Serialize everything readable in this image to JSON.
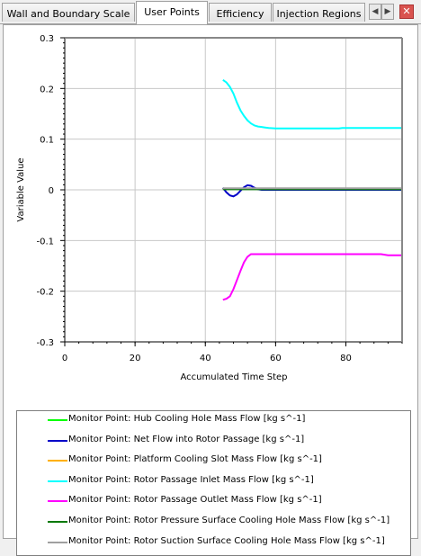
{
  "tabs": [
    {
      "label": "Wall and Boundary Scale",
      "active": false
    },
    {
      "label": "User Points",
      "active": true
    },
    {
      "label": "Efficiency",
      "active": false
    },
    {
      "label": "Injection Regions",
      "active": false
    }
  ],
  "nav": {
    "prev_icon": "triangle-left",
    "next_icon": "triangle-right",
    "close_icon": "close-x"
  },
  "chart_data": {
    "type": "line",
    "title": "",
    "xlabel": "Accumulated Time Step",
    "ylabel": "Variable Value",
    "xlim": [
      0,
      96
    ],
    "ylim": [
      -0.3,
      0.3
    ],
    "xticks": [
      "0",
      "20",
      "40",
      "60",
      "80"
    ],
    "yticks": [
      "-0.3",
      "-0.2",
      "-0.1",
      "0",
      "0.1",
      "0.2",
      "0.3"
    ],
    "grid": true,
    "legend_position": "bottom",
    "series": [
      {
        "name": "Monitor Point: Hub Cooling Hole Mass Flow [kg s^-1]",
        "color": "#00ff00",
        "x": [
          45,
          50,
          60,
          70,
          80,
          90,
          96
        ],
        "y": [
          0.002,
          0.002,
          0.002,
          0.002,
          0.002,
          0.002,
          0.002
        ]
      },
      {
        "name": "Monitor Point: Net Flow into Rotor Passage [kg s^-1]",
        "color": "#0000c8",
        "x": [
          45,
          46,
          47,
          48,
          49,
          50,
          51,
          52,
          53,
          54,
          55,
          56,
          58,
          60,
          70,
          80,
          90,
          96
        ],
        "y": [
          0.004,
          -0.005,
          -0.011,
          -0.013,
          -0.009,
          -0.002,
          0.005,
          0.009,
          0.008,
          0.004,
          0.001,
          0.0,
          0.0,
          0.0,
          0.0,
          0.0,
          0.0,
          0.0
        ]
      },
      {
        "name": "Monitor Point: Platform Cooling Slot Mass Flow [kg s^-1]",
        "color": "#ffb000",
        "x": [
          45,
          50,
          60,
          70,
          80,
          90,
          96
        ],
        "y": [
          0.002,
          0.002,
          0.002,
          0.002,
          0.002,
          0.002,
          0.002
        ]
      },
      {
        "name": "Monitor Point: Rotor Passage Inlet Mass Flow [kg s^-1]",
        "color": "#00ffff",
        "x": [
          45,
          46,
          47,
          48,
          49,
          50,
          51,
          52,
          53,
          54,
          55,
          56,
          57,
          58,
          60,
          65,
          70,
          75,
          78,
          79,
          85,
          90,
          96
        ],
        "y": [
          0.217,
          0.212,
          0.203,
          0.19,
          0.172,
          0.157,
          0.146,
          0.137,
          0.131,
          0.127,
          0.125,
          0.124,
          0.123,
          0.122,
          0.121,
          0.121,
          0.121,
          0.121,
          0.121,
          0.122,
          0.122,
          0.122,
          0.122
        ]
      },
      {
        "name": "Monitor Point: Rotor Passage Outlet Mass Flow [kg s^-1]",
        "color": "#ff00ff",
        "x": [
          45,
          46,
          47,
          48,
          49,
          50,
          51,
          52,
          53,
          55,
          60,
          70,
          80,
          90,
          92,
          96
        ],
        "y": [
          -0.217,
          -0.215,
          -0.21,
          -0.196,
          -0.178,
          -0.16,
          -0.143,
          -0.132,
          -0.127,
          -0.127,
          -0.127,
          -0.127,
          -0.127,
          -0.127,
          -0.129,
          -0.129
        ]
      },
      {
        "name": "Monitor Point: Rotor Pressure Surface Cooling Hole Mass Flow [kg s^-1]",
        "color": "#007800",
        "x": [
          45,
          50,
          60,
          70,
          80,
          90,
          96
        ],
        "y": [
          0.001,
          0.001,
          0.001,
          0.001,
          0.001,
          0.001,
          0.001
        ]
      },
      {
        "name": "Monitor Point: Rotor Suction Surface Cooling Hole Mass Flow [kg s^-1]",
        "color": "#a0a0a0",
        "x": [
          45,
          50,
          60,
          70,
          80,
          90,
          96
        ],
        "y": [
          0.003,
          0.003,
          0.003,
          0.003,
          0.003,
          0.003,
          0.003
        ]
      }
    ]
  }
}
